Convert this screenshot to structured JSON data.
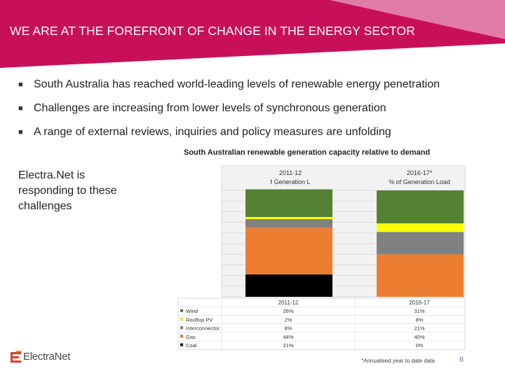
{
  "slide": {
    "title": "WE ARE AT THE FOREFRONT OF CHANGE IN THE ENERGY SECTOR",
    "bullets": [
      "South Australia has reached world-leading levels of renewable energy penetration",
      "Challenges are increasing from lower levels of synchronous generation",
      "A range of external reviews, inquiries and policy measures are unfolding"
    ],
    "side_text": "Electra.Net is responding to these challenges",
    "footnote": "*Annualised year to date data",
    "page_number": "6",
    "logo_text": "ElectraNet",
    "colors": {
      "banner": "#c8105a",
      "banner_light": "#e8a0c0"
    }
  },
  "chart_data": {
    "type": "bar",
    "stacked": true,
    "title": "South Australian renewable generation capacity relative to demand",
    "column_headers": [
      {
        "line1": "2011-12",
        "line2": "f Generation L"
      },
      {
        "line1": "2016-17*",
        "line2": "% of Generation Load"
      }
    ],
    "categories": [
      "2011-12",
      "2016-17"
    ],
    "series": [
      {
        "name": "Wind",
        "color": "#548235",
        "values": [
          26,
          31
        ],
        "labels": [
          "26%",
          "31%"
        ]
      },
      {
        "name": "Rooftop PV",
        "color": "#ffff00",
        "values": [
          2,
          8
        ],
        "labels": [
          "2%",
          "8%"
        ]
      },
      {
        "name": "Interconnector",
        "color": "#808080",
        "values": [
          8,
          21
        ],
        "labels": [
          "8%",
          "21%"
        ]
      },
      {
        "name": "Gas",
        "color": "#ed7d31",
        "values": [
          44,
          40
        ],
        "labels": [
          "44%",
          "40%"
        ]
      },
      {
        "name": "Coal",
        "color": "#000000",
        "values": [
          21,
          0
        ],
        "labels": [
          "21%",
          "0%"
        ]
      }
    ],
    "ylim": [
      0,
      100
    ],
    "grid": true,
    "legend": "table-left"
  }
}
